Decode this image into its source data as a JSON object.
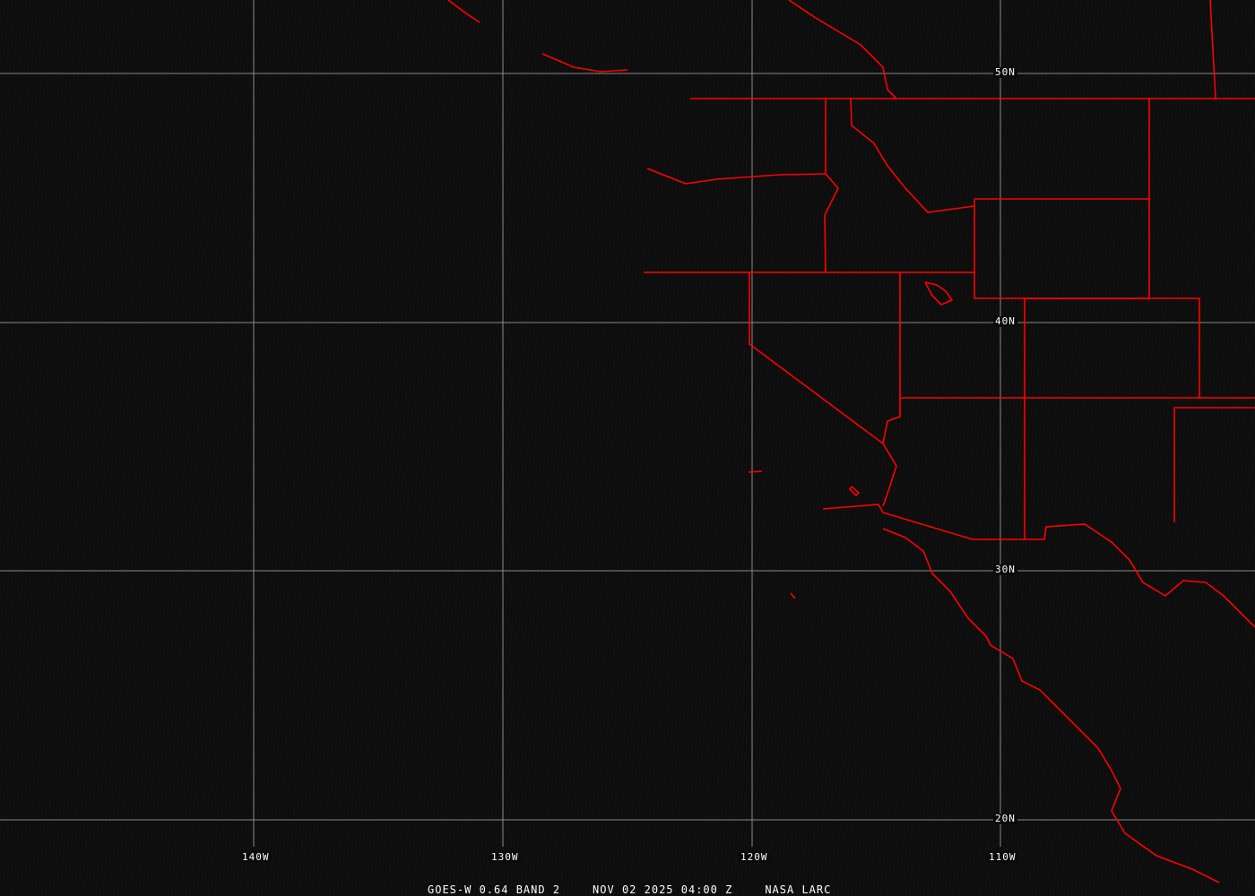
{
  "map": {
    "lat_labels": [
      "50N",
      "40N",
      "30N",
      "20N"
    ],
    "lon_labels": [
      "140W",
      "130W",
      "120W",
      "110W"
    ],
    "grid_color": "#8a8a8a",
    "boundary_color": "#ff0000"
  },
  "caption": {
    "product": "GOES-W 0.64 BAND 2",
    "datetime": "NOV 02 2025 04:00 Z",
    "source": "NASA LARC"
  }
}
